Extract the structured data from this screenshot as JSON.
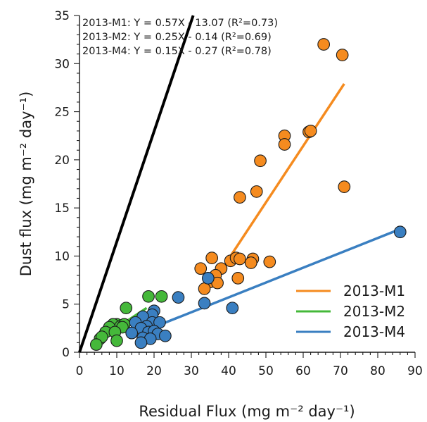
{
  "chart_data": {
    "type": "scatter",
    "title": "",
    "xlabel": "Residual Flux (mg m⁻² day⁻¹)",
    "ylabel": "Dust flux (mg m⁻² day⁻¹)",
    "xlim": [
      0,
      90
    ],
    "ylim": [
      0,
      35
    ],
    "x_ticks": [
      0,
      10,
      20,
      30,
      40,
      50,
      60,
      70,
      80,
      90
    ],
    "y_ticks": [
      0,
      5,
      10,
      15,
      20,
      25,
      30,
      35
    ],
    "grid": false,
    "legend_position": "bottom-right",
    "annotations": [
      "2013-M1: Y = 0.57X - 13.07 (R²=0.73)",
      "2013-M2: Y = 0.25X - 0.14 (R²=0.69)",
      "2013-M4: Y = 0.15X - 0.27 (R²=0.78)"
    ],
    "reference_line": {
      "color": "#000000",
      "points": [
        [
          0,
          0
        ],
        [
          30.5,
          35
        ]
      ]
    },
    "series": [
      {
        "name": "2013-M1",
        "color": "#f58b1f",
        "fit": [
          [
            39.5,
            9.4
          ],
          [
            71,
            27.9
          ]
        ],
        "points": [
          [
            65.5,
            32.0
          ],
          [
            70.5,
            30.9
          ],
          [
            61.5,
            22.9
          ],
          [
            62.0,
            23.0
          ],
          [
            55.0,
            22.5
          ],
          [
            55.0,
            21.6
          ],
          [
            48.5,
            19.9
          ],
          [
            47.5,
            16.7
          ],
          [
            71.0,
            17.2
          ],
          [
            43.0,
            16.1
          ],
          [
            35.5,
            9.8
          ],
          [
            32.5,
            8.7
          ],
          [
            38.0,
            8.7
          ],
          [
            40.5,
            9.5
          ],
          [
            42.0,
            9.8
          ],
          [
            43.0,
            9.7
          ],
          [
            46.5,
            9.7
          ],
          [
            46.0,
            9.3
          ],
          [
            51.0,
            9.4
          ],
          [
            36.5,
            8.0
          ],
          [
            35.0,
            7.3
          ],
          [
            37.0,
            7.2
          ],
          [
            33.5,
            6.6
          ],
          [
            42.5,
            7.7
          ]
        ]
      },
      {
        "name": "2013-M2",
        "color": "#45b83a",
        "fit": [
          [
            4,
            1.0
          ],
          [
            18,
            4.6
          ]
        ],
        "points": [
          [
            18.5,
            5.8
          ],
          [
            22.0,
            5.8
          ],
          [
            12.5,
            4.6
          ],
          [
            10.0,
            2.9
          ],
          [
            9.0,
            2.9
          ],
          [
            11.0,
            2.7
          ],
          [
            12.0,
            2.9
          ],
          [
            8.0,
            2.6
          ],
          [
            11.5,
            2.6
          ],
          [
            7.0,
            2.1
          ],
          [
            9.5,
            2.1
          ],
          [
            5.5,
            1.4
          ],
          [
            6.0,
            1.6
          ],
          [
            10.0,
            1.2
          ],
          [
            4.5,
            0.8
          ]
        ]
      },
      {
        "name": "2013-M4",
        "color": "#3a7fc1",
        "fit": [
          [
            16,
            2.0
          ],
          [
            86,
            12.8
          ]
        ],
        "points": [
          [
            86.0,
            12.5
          ],
          [
            34.5,
            7.7
          ],
          [
            26.5,
            5.7
          ],
          [
            33.5,
            5.1
          ],
          [
            41.0,
            4.6
          ],
          [
            20.0,
            4.3
          ],
          [
            19.5,
            3.9
          ],
          [
            17.0,
            3.7
          ],
          [
            15.0,
            3.1
          ],
          [
            19.5,
            3.1
          ],
          [
            21.5,
            3.1
          ],
          [
            18.0,
            2.7
          ],
          [
            16.5,
            2.5
          ],
          [
            14.0,
            2.0
          ],
          [
            18.5,
            2.1
          ],
          [
            20.0,
            2.2
          ],
          [
            21.0,
            1.9
          ],
          [
            23.0,
            1.7
          ],
          [
            17.0,
            1.5
          ],
          [
            19.0,
            1.4
          ],
          [
            16.5,
            1.0
          ]
        ]
      }
    ]
  }
}
